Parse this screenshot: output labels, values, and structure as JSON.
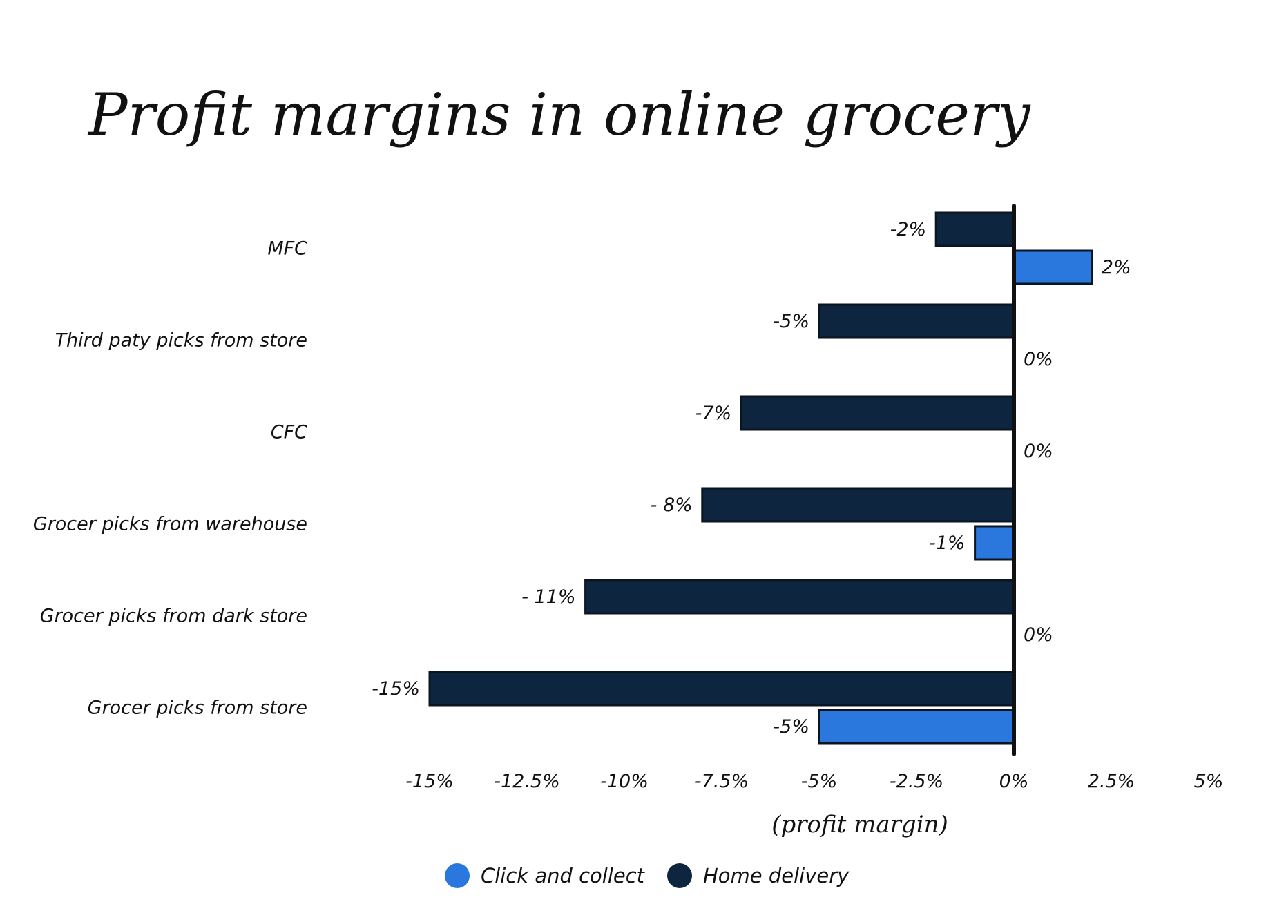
{
  "chart_data": {
    "type": "bar",
    "orientation": "horizontal",
    "title": "Profit margins in online grocery",
    "xlabel": "(profit margin)",
    "ylabel": "",
    "xlim": [
      -15,
      5
    ],
    "x_ticks": [
      -15,
      -12.5,
      -10,
      -7.5,
      -5,
      -2.5,
      0,
      2.5,
      5
    ],
    "x_tick_labels": [
      "-15%",
      "-12.5%",
      "-10%",
      "-7.5%",
      "-5%",
      "-2.5%",
      "0%",
      "2.5%",
      "5%"
    ],
    "categories": [
      "MFC",
      "Third paty picks from store",
      "CFC",
      "Grocer picks from warehouse",
      "Grocer picks from dark store",
      "Grocer picks from store"
    ],
    "series": [
      {
        "name": "Home delivery",
        "color": "#0e2540",
        "values": [
          -2,
          -5,
          -7,
          -8,
          -11,
          -15
        ],
        "labels": [
          "-2%",
          "-5%",
          "-7%",
          "- 8%",
          "- 11%",
          "-15%"
        ]
      },
      {
        "name": "Click and collect",
        "color": "#2a78dd",
        "values": [
          2,
          0,
          0,
          -1,
          0,
          -5
        ],
        "labels": [
          "2%",
          "0%",
          "0%",
          "-1%",
          "0%",
          "-5%"
        ]
      }
    ],
    "legend": {
      "position": "bottom-center",
      "order": [
        "Click and collect",
        "Home delivery"
      ]
    },
    "grid": false
  }
}
